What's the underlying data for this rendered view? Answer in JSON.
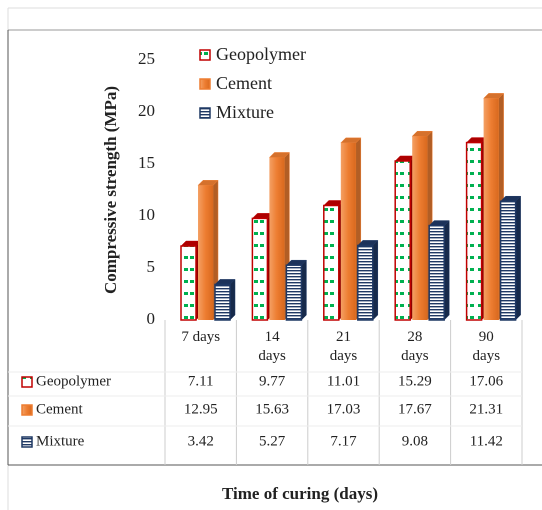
{
  "chart_data": {
    "type": "bar",
    "y_label": "Compressive strength (MPa)",
    "x_label": "Time of curing (days)",
    "categories": [
      "7 days",
      "14 days",
      "21 days",
      "28 days",
      "90 days"
    ],
    "series": [
      {
        "name": "Geopolymer",
        "color": "#c00000",
        "values": [
          7.11,
          9.77,
          11.01,
          15.29,
          17.06
        ]
      },
      {
        "name": "Cement",
        "color": "#ed7d31",
        "values": [
          12.95,
          15.63,
          17.03,
          17.67,
          21.31
        ]
      },
      {
        "name": "Mixture",
        "color": "#1f3864",
        "values": [
          3.42,
          5.27,
          7.17,
          9.08,
          11.42
        ]
      }
    ],
    "ylim": [
      0,
      25
    ],
    "yticks": [
      0,
      5,
      10,
      15,
      20,
      25
    ],
    "grid": false
  }
}
